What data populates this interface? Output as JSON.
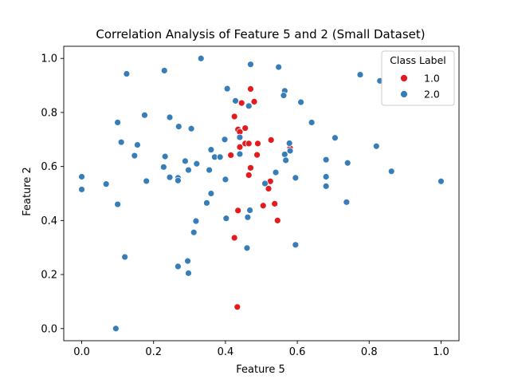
{
  "chart_data": {
    "type": "scatter",
    "title": "Correlation Analysis of Feature 5 and 2 (Small Dataset)",
    "xlabel": "Feature 5",
    "ylabel": "Feature 2",
    "xlim": [
      -0.05,
      1.05
    ],
    "ylim": [
      -0.045,
      1.045
    ],
    "xticks": [
      "0.0",
      "0.2",
      "0.4",
      "0.6",
      "0.8",
      "1.0"
    ],
    "yticks": [
      "0.0",
      "0.2",
      "0.4",
      "0.6",
      "0.8",
      "1.0"
    ],
    "grid": false,
    "legend": {
      "title": "Class Label",
      "placement": "top-right"
    },
    "series": [
      {
        "name": "1.0",
        "color": "#e41a1c",
        "points": [
          [
            0.47,
            0.887
          ],
          [
            0.48,
            0.84
          ],
          [
            0.445,
            0.835
          ],
          [
            0.425,
            0.785
          ],
          [
            0.435,
            0.737
          ],
          [
            0.44,
            0.728
          ],
          [
            0.455,
            0.742
          ],
          [
            0.455,
            0.685
          ],
          [
            0.465,
            0.685
          ],
          [
            0.44,
            0.672
          ],
          [
            0.49,
            0.685
          ],
          [
            0.527,
            0.698
          ],
          [
            0.415,
            0.642
          ],
          [
            0.488,
            0.643
          ],
          [
            0.47,
            0.595
          ],
          [
            0.58,
            0.668
          ],
          [
            0.465,
            0.568
          ],
          [
            0.525,
            0.545
          ],
          [
            0.52,
            0.518
          ],
          [
            0.537,
            0.462
          ],
          [
            0.505,
            0.455
          ],
          [
            0.435,
            0.437
          ],
          [
            0.545,
            0.4
          ],
          [
            0.425,
            0.336
          ],
          [
            0.433,
            0.08
          ]
        ]
      },
      {
        "name": "2.0",
        "color": "#377eb8",
        "points": [
          [
            0.332,
            1.0
          ],
          [
            0.47,
            0.978
          ],
          [
            0.125,
            0.943
          ],
          [
            0.23,
            0.955
          ],
          [
            0.548,
            0.968
          ],
          [
            0.775,
            0.94
          ],
          [
            0.83,
            0.917
          ],
          [
            0.405,
            0.888
          ],
          [
            0.565,
            0.88
          ],
          [
            0.562,
            0.863
          ],
          [
            0.428,
            0.843
          ],
          [
            0.465,
            0.824
          ],
          [
            0.61,
            0.838
          ],
          [
            0.175,
            0.79
          ],
          [
            0.245,
            0.782
          ],
          [
            0.1,
            0.763
          ],
          [
            0.64,
            0.763
          ],
          [
            0.27,
            0.748
          ],
          [
            0.305,
            0.74
          ],
          [
            0.705,
            0.706
          ],
          [
            0.44,
            0.708
          ],
          [
            0.11,
            0.69
          ],
          [
            0.398,
            0.7
          ],
          [
            0.155,
            0.68
          ],
          [
            0.578,
            0.686
          ],
          [
            0.82,
            0.675
          ],
          [
            0.36,
            0.662
          ],
          [
            0.58,
            0.658
          ],
          [
            0.147,
            0.64
          ],
          [
            0.232,
            0.637
          ],
          [
            0.37,
            0.635
          ],
          [
            0.385,
            0.635
          ],
          [
            0.44,
            0.646
          ],
          [
            0.565,
            0.645
          ],
          [
            0.568,
            0.623
          ],
          [
            0.68,
            0.625
          ],
          [
            0.288,
            0.62
          ],
          [
            0.32,
            0.61
          ],
          [
            0.74,
            0.613
          ],
          [
            0.228,
            0.598
          ],
          [
            0.297,
            0.587
          ],
          [
            0.355,
            0.587
          ],
          [
            0.54,
            0.578
          ],
          [
            0.862,
            0.582
          ],
          [
            0.0,
            0.562
          ],
          [
            0.245,
            0.56
          ],
          [
            0.268,
            0.558
          ],
          [
            0.18,
            0.546
          ],
          [
            0.268,
            0.548
          ],
          [
            0.595,
            0.558
          ],
          [
            0.68,
            0.562
          ],
          [
            0.4,
            0.552
          ],
          [
            1.0,
            0.545
          ],
          [
            0.51,
            0.537
          ],
          [
            0.068,
            0.535
          ],
          [
            0.68,
            0.527
          ],
          [
            0.0,
            0.515
          ],
          [
            0.36,
            0.5
          ],
          [
            0.348,
            0.465
          ],
          [
            0.737,
            0.468
          ],
          [
            0.1,
            0.46
          ],
          [
            0.468,
            0.438
          ],
          [
            0.402,
            0.408
          ],
          [
            0.462,
            0.412
          ],
          [
            0.318,
            0.398
          ],
          [
            0.312,
            0.356
          ],
          [
            0.595,
            0.31
          ],
          [
            0.46,
            0.298
          ],
          [
            0.12,
            0.265
          ],
          [
            0.295,
            0.25
          ],
          [
            0.268,
            0.23
          ],
          [
            0.297,
            0.205
          ],
          [
            0.095,
            0.0
          ]
        ]
      }
    ]
  }
}
